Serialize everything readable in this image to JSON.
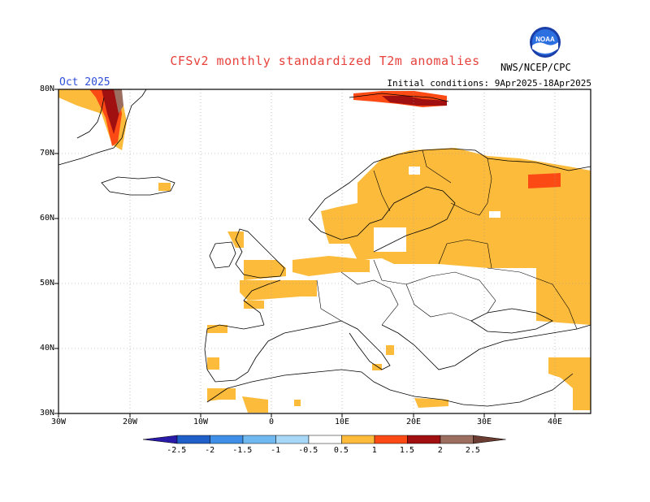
{
  "title": "CFSv2 monthly standardized T2m anomalies",
  "month_label": "Oct 2025",
  "initial_conditions": "Initial conditions: 9Apr2025-18Apr2025",
  "agency": "NWS/NCEP/CPC",
  "logo_text": "NOAA",
  "logo_icon": "noaa-seal-icon",
  "map": {
    "projection": "lat-lon",
    "lon_range": [
      -30,
      45
    ],
    "lat_range": [
      30,
      80
    ],
    "grid": true,
    "lat_labels": [
      "80N",
      "70N",
      "60N",
      "50N",
      "40N",
      "30N"
    ],
    "lon_labels": [
      "30W",
      "20W",
      "10W",
      "0",
      "10E",
      "20E",
      "30E",
      "40E"
    ]
  },
  "colorbar": {
    "levels": [
      "-2.5",
      "-2",
      "-1.5",
      "-1",
      "-0.5",
      "0.5",
      "1",
      "1.5",
      "2",
      "2.5"
    ],
    "colors": [
      "#2a1aa8",
      "#1f5fc8",
      "#3f8fe8",
      "#6fb8f0",
      "#a7d8f8",
      "#ffffff",
      "#fdbb3c",
      "#fb4a14",
      "#a01010",
      "#9c6e60",
      "#6a3c32"
    ]
  }
}
